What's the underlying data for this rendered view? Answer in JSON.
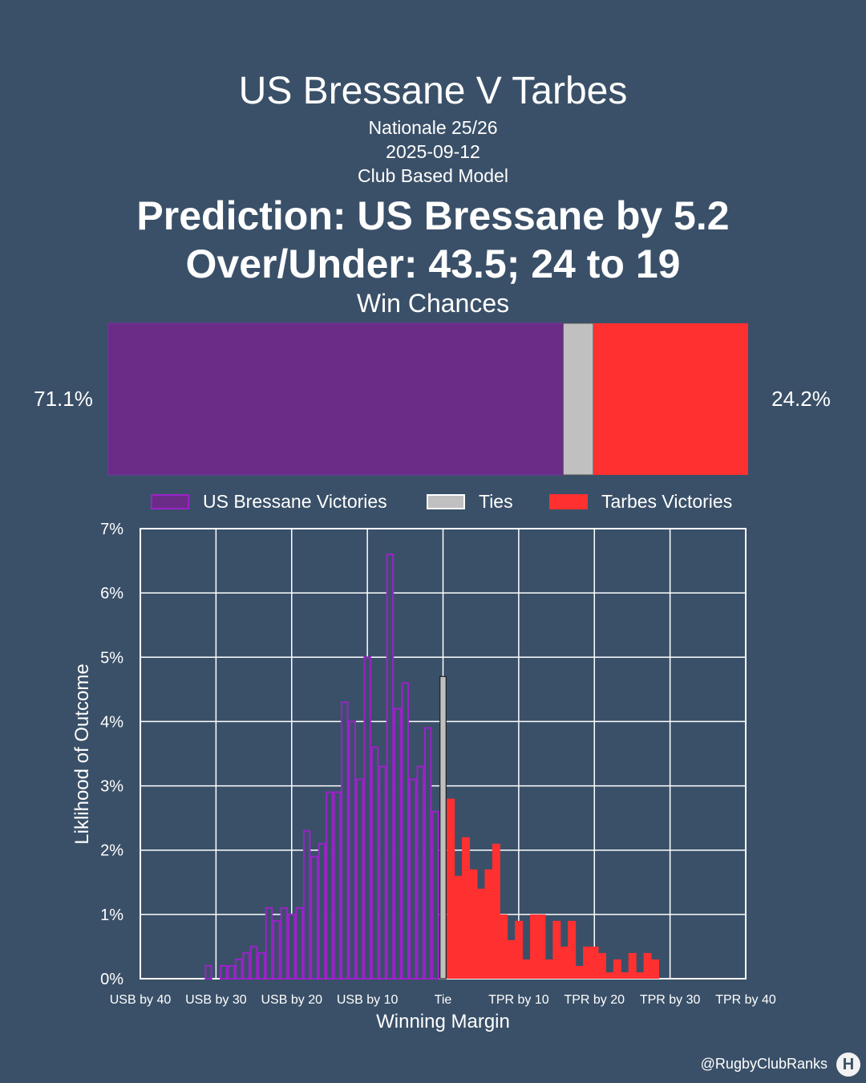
{
  "header": {
    "title": "US Bressane V Tarbes",
    "competition": "Nationale 25/26",
    "date": "2025-09-12",
    "model": "Club Based Model",
    "prediction": "Prediction: US Bressane by 5.2",
    "over_under": "Over/Under: 43.5; 24 to 19",
    "win_chances_title": "Win Chances"
  },
  "win_chances": {
    "home_pct": 71.1,
    "tie_pct": 4.7,
    "away_pct": 24.2,
    "home_label": "71.1%",
    "away_label": "24.2%",
    "home_color": "#6a2c86",
    "tie_color": "#c0c0c0",
    "away_color": "#ff3030"
  },
  "legend": [
    {
      "label": "US Bressane Victories",
      "color": "#9b22c9"
    },
    {
      "label": "Ties",
      "color": "#c0c0c0"
    },
    {
      "label": "Tarbes Victories",
      "color": "#ff3030"
    }
  ],
  "chart_data": {
    "type": "bar",
    "xlabel": "Winning Margin",
    "ylabel": "Liklihood of Outcome",
    "xlim": [
      -40,
      40
    ],
    "ylim": [
      0,
      7
    ],
    "grid": true,
    "x_ticks": [
      -40,
      -30,
      -20,
      -10,
      0,
      10,
      20,
      30,
      40
    ],
    "x_tick_labels": [
      "USB by 40",
      "USB by 30",
      "USB by 20",
      "USB by 10",
      "Tie",
      "TPR by 10",
      "TPR by 20",
      "TPR by 30",
      "TPR by 40"
    ],
    "y_ticks": [
      0,
      1,
      2,
      3,
      4,
      5,
      6,
      7
    ],
    "y_tick_labels": [
      "0%",
      "1%",
      "2%",
      "3%",
      "4%",
      "5%",
      "6%",
      "7%"
    ],
    "series": [
      {
        "name": "US Bressane Victories",
        "color": "#9b22c9",
        "x": [
          -31,
          -30,
          -29,
          -28,
          -27,
          -26,
          -25,
          -24,
          -23,
          -22,
          -21,
          -20,
          -19,
          -18,
          -17,
          -16,
          -15,
          -14,
          -13,
          -12,
          -11,
          -10,
          -9,
          -8,
          -7,
          -6,
          -5,
          -4,
          -3,
          -2,
          -1
        ],
        "values": [
          0.2,
          0.0,
          0.2,
          0.2,
          0.3,
          0.4,
          0.5,
          0.4,
          1.1,
          0.9,
          1.1,
          1.0,
          1.1,
          2.3,
          1.9,
          2.1,
          2.9,
          2.9,
          4.3,
          4.0,
          3.1,
          5.0,
          3.6,
          3.3,
          6.6,
          4.2,
          4.6,
          3.1,
          3.3,
          3.9,
          2.6
        ]
      },
      {
        "name": "Ties",
        "color": "#c0c0c0",
        "x": [
          0
        ],
        "values": [
          4.7
        ]
      },
      {
        "name": "Tarbes Victories",
        "color": "#ff3030",
        "x": [
          1,
          2,
          3,
          4,
          5,
          6,
          7,
          8,
          9,
          10,
          11,
          12,
          13,
          14,
          15,
          16,
          17,
          18,
          19,
          20,
          21,
          22,
          23,
          24,
          25,
          26,
          27,
          28
        ],
        "values": [
          2.8,
          1.6,
          2.2,
          1.7,
          1.4,
          1.7,
          2.1,
          1.0,
          0.6,
          0.9,
          0.3,
          1.0,
          1.0,
          0.3,
          0.9,
          0.5,
          0.9,
          0.2,
          0.5,
          0.5,
          0.4,
          0.1,
          0.3,
          0.1,
          0.4,
          0.1,
          0.4,
          0.3
        ]
      }
    ]
  },
  "footer": {
    "handle": "@RugbyClubRanks",
    "logo_text": "H"
  }
}
